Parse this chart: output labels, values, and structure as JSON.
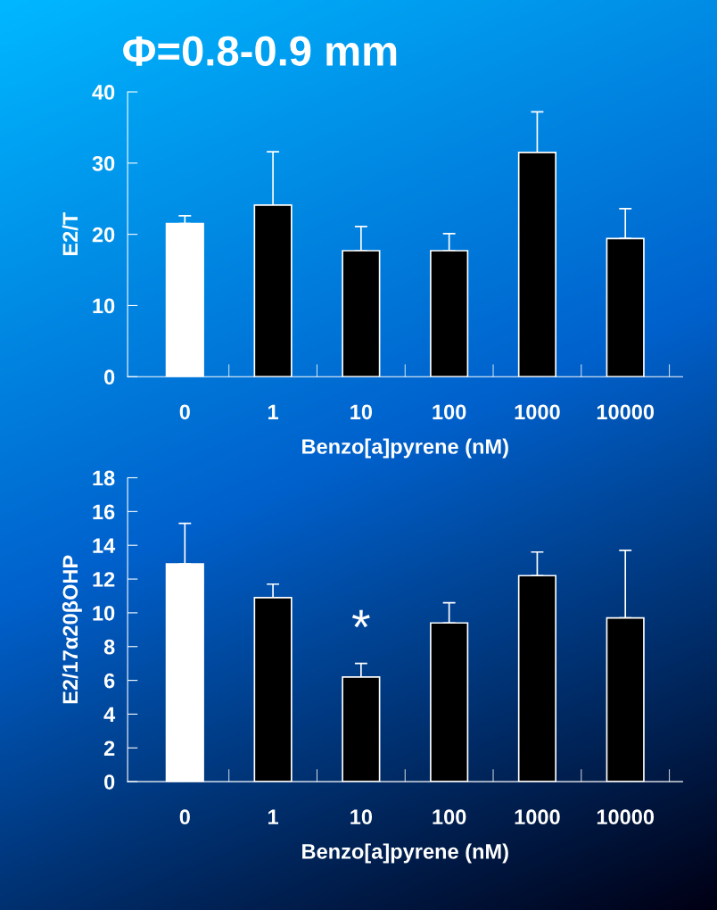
{
  "chart_data": [
    {
      "type": "bar",
      "title": "Φ=0.8-0.9 mm",
      "xlabel": "Benzo[a]pyrene (nM)",
      "ylabel": "E2/T",
      "categories": [
        "0",
        "1",
        "10",
        "100",
        "1000",
        "10000"
      ],
      "values": [
        21.5,
        24.1,
        17.7,
        17.7,
        31.5,
        19.4
      ],
      "errors": [
        [
          21.5,
          22.6
        ],
        [
          24.1,
          31.6
        ],
        [
          17.7,
          21.1
        ],
        [
          17.7,
          20.1
        ],
        [
          31.5,
          37.2
        ],
        [
          19.4,
          23.6
        ]
      ],
      "colors": [
        "#ffffff",
        "#000000",
        "#000000",
        "#000000",
        "#000000",
        "#000000"
      ],
      "ylim": [
        0,
        40
      ],
      "yticks": [
        0,
        10,
        20,
        30,
        40
      ],
      "grid": false,
      "legend": false
    },
    {
      "type": "bar",
      "xlabel": "Benzo[a]pyrene (nM)",
      "ylabel": "E2/17α20βOHP",
      "categories": [
        "0",
        "1",
        "10",
        "100",
        "1000",
        "10000"
      ],
      "values": [
        12.9,
        10.9,
        6.2,
        9.4,
        12.2,
        9.7
      ],
      "errors": [
        [
          12.9,
          15.3
        ],
        [
          10.9,
          11.7
        ],
        [
          6.2,
          7.0
        ],
        [
          9.4,
          10.6
        ],
        [
          12.2,
          13.6
        ],
        [
          9.7,
          13.7
        ]
      ],
      "colors": [
        "#ffffff",
        "#000000",
        "#000000",
        "#000000",
        "#000000",
        "#000000"
      ],
      "annotations": [
        {
          "text": "*",
          "x": "10",
          "y": 7.0
        }
      ],
      "ylim": [
        0,
        18
      ],
      "yticks": [
        0,
        2,
        4,
        6,
        8,
        10,
        12,
        14,
        16,
        18
      ],
      "grid": false,
      "legend": false
    }
  ]
}
